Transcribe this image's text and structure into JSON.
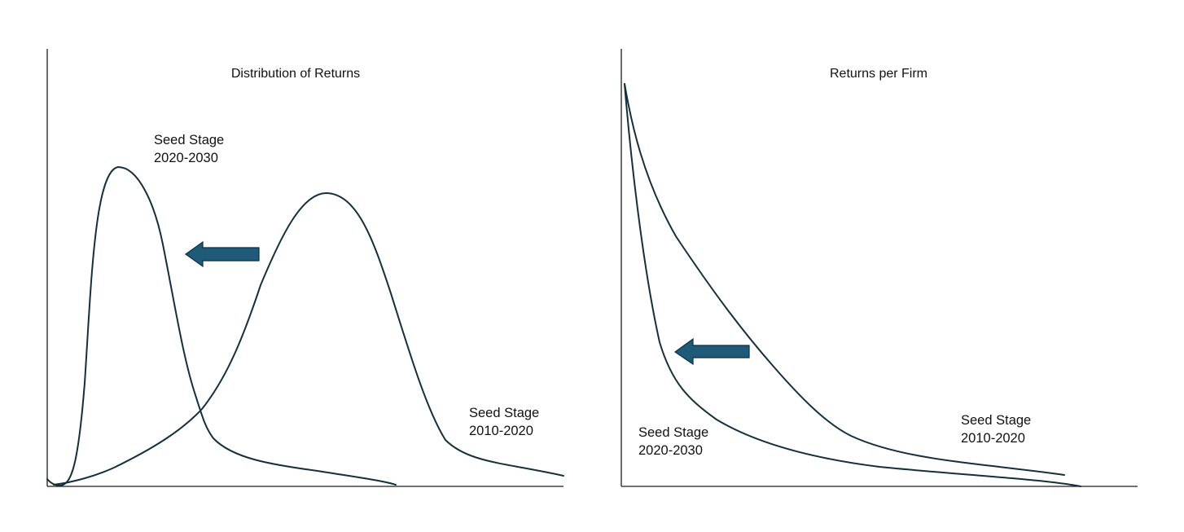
{
  "panels": [
    {
      "id": "distribution",
      "title": "Distribution of Returns",
      "curves": [
        {
          "label_line1": "Seed Stage",
          "label_line2": "2020-2030"
        },
        {
          "label_line1": "Seed Stage",
          "label_line2": "2010-2020"
        }
      ],
      "arrow_direction": "left"
    },
    {
      "id": "per-firm",
      "title": "Returns per Firm",
      "curves": [
        {
          "label_line1": "Seed Stage",
          "label_line2": "2020-2030"
        },
        {
          "label_line1": "Seed Stage",
          "label_line2": "2010-2020"
        }
      ],
      "arrow_direction": "left"
    }
  ],
  "colors": {
    "curve": "#15303c",
    "arrow_fill": "#1f5a78",
    "arrow_stroke": "#0f2f40",
    "axis": "#1c1c1c"
  }
}
